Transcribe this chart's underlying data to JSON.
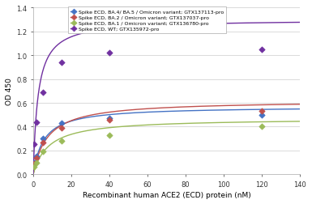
{
  "series": [
    {
      "label": "Spike ECD, BA.4/ BA.5 / Omicron variant; GTX137113-pro",
      "color": "#4472c4",
      "x_data": [
        0.5,
        1.5,
        5,
        15,
        40,
        120
      ],
      "y_data": [
        0.1,
        0.15,
        0.3,
        0.43,
        0.47,
        0.5
      ],
      "y_max": 0.57,
      "k": 5.5
    },
    {
      "label": "Spike ECD, BA.2 / Omicron variant; GTX137037-pro",
      "color": "#c0504d",
      "x_data": [
        0.5,
        1.5,
        5,
        15,
        40,
        120
      ],
      "y_data": [
        0.09,
        0.14,
        0.27,
        0.39,
        0.46,
        0.53
      ],
      "y_max": 0.62,
      "k": 7.5
    },
    {
      "label": "Spike ECD, BA.1 / Omicron variant; GTX136780-pro",
      "color": "#9bbb59",
      "x_data": [
        0.5,
        1.5,
        5,
        15,
        40,
        120
      ],
      "y_data": [
        0.06,
        0.1,
        0.19,
        0.28,
        0.33,
        0.4
      ],
      "y_max": 0.47,
      "k": 8.0
    },
    {
      "label": "Spike ECD, WT; GTX135972-pro",
      "color": "#7030a0",
      "x_data": [
        0.5,
        1.5,
        5,
        15,
        40,
        120
      ],
      "y_data": [
        0.25,
        0.44,
        0.69,
        0.94,
        1.02,
        1.05
      ],
      "y_max": 1.3,
      "k": 2.5
    }
  ],
  "xlabel": "Recombinant human ACE2 (ECD) protein (nM)",
  "ylabel": "OD 450",
  "xlim": [
    0,
    140
  ],
  "ylim": [
    0,
    1.4
  ],
  "xticks": [
    0,
    20,
    40,
    60,
    80,
    100,
    120,
    140
  ],
  "yticks": [
    0,
    0.2,
    0.4,
    0.6,
    0.8,
    1.0,
    1.2,
    1.4
  ],
  "background_color": "#ffffff",
  "grid_color": "#cccccc",
  "legend_labels": [
    "Spike ECD, BA.4/ BA.5 / Omicron variant; GTX137113-pro",
    "Spike ECD, BA.2 / Omicron variant; GTX137037-pro",
    "Spike ECD, BA.1 / Omicron variant; GTX136780-pro",
    "Spike ECD, WT; GTX135972-pro"
  ]
}
